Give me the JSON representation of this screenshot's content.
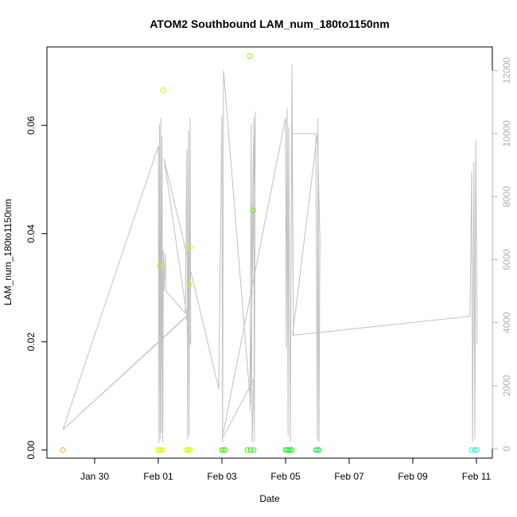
{
  "chart_data": {
    "type": "scatter",
    "title": "ATOM2 Southbound LAM_num_180to1150nm",
    "xlabel": "Date",
    "ylabel": "LAM_num_180to1150nm",
    "x_ticks": [
      "Jan 30",
      "Feb 01",
      "Feb 03",
      "Feb 05",
      "Feb 07",
      "Feb 09",
      "Feb 11"
    ],
    "x_tick_days": [
      30,
      32,
      34,
      36,
      38,
      40,
      42
    ],
    "xlim": [
      28.5,
      42.5
    ],
    "ylim": [
      -0.0015,
      0.0745
    ],
    "y_ticks": [
      0.0,
      0.02,
      0.04,
      0.06
    ],
    "y_tick_labels": [
      "0.00",
      "0.02",
      "0.04",
      "0.06"
    ],
    "y2lim": [
      -300,
      12750
    ],
    "y2_ticks": [
      0,
      2000,
      4000,
      6000,
      8000,
      10000,
      12000
    ],
    "y2_tick_labels": [
      "0",
      "2000",
      "4000",
      "6000",
      "8000",
      "10000",
      "12000"
    ],
    "grid": false,
    "series": [
      {
        "type": "points",
        "points": [
          {
            "day": 29.0,
            "value": 0.0,
            "color": "#f2a040"
          },
          {
            "day": 32.0,
            "value": 0.0,
            "color": "#e6f000"
          },
          {
            "day": 32.05,
            "value": 0.0,
            "color": "#e6f000"
          },
          {
            "day": 32.1,
            "value": 0.0,
            "color": "#e6f000"
          },
          {
            "day": 32.15,
            "value": 0.0,
            "color": "#e6f000"
          },
          {
            "day": 32.05,
            "value": 0.034,
            "color": "#d4f000"
          },
          {
            "day": 32.15,
            "value": 0.0665,
            "color": "#d4f000"
          },
          {
            "day": 32.9,
            "value": 0.0,
            "color": "#d8f000"
          },
          {
            "day": 32.95,
            "value": 0.0,
            "color": "#d8f000"
          },
          {
            "day": 33.0,
            "value": 0.0,
            "color": "#d8f000"
          },
          {
            "day": 32.98,
            "value": 0.0305,
            "color": "#d0f000"
          },
          {
            "day": 33.0,
            "value": 0.0375,
            "color": "#d0f000"
          },
          {
            "day": 34.0,
            "value": 0.0,
            "color": "#40f000"
          },
          {
            "day": 34.05,
            "value": 0.0,
            "color": "#40f000"
          },
          {
            "day": 34.1,
            "value": 0.0,
            "color": "#40f000"
          },
          {
            "day": 34.8,
            "value": 0.0,
            "color": "#30f000"
          },
          {
            "day": 34.9,
            "value": 0.0,
            "color": "#30f000"
          },
          {
            "day": 35.0,
            "value": 0.0,
            "color": "#30f000"
          },
          {
            "day": 34.88,
            "value": 0.0728,
            "color": "#80f000"
          },
          {
            "day": 34.98,
            "value": 0.0443,
            "color": "#60f000"
          },
          {
            "day": 36.0,
            "value": 0.0,
            "color": "#18f030"
          },
          {
            "day": 36.05,
            "value": 0.0,
            "color": "#18f030"
          },
          {
            "day": 36.1,
            "value": 0.0,
            "color": "#18f030"
          },
          {
            "day": 36.15,
            "value": 0.0,
            "color": "#18f030"
          },
          {
            "day": 36.2,
            "value": 0.0,
            "color": "#18f030"
          },
          {
            "day": 36.95,
            "value": 0.0,
            "color": "#10f040"
          },
          {
            "day": 37.0,
            "value": 0.0,
            "color": "#10f040"
          },
          {
            "day": 37.05,
            "value": 0.0,
            "color": "#10f040"
          },
          {
            "day": 41.85,
            "value": 0.0,
            "color": "#30f0c8"
          },
          {
            "day": 41.95,
            "value": 0.0,
            "color": "#30f0c8"
          },
          {
            "day": 42.02,
            "value": 0.0,
            "color": "#30f0c8"
          }
        ]
      },
      {
        "type": "line",
        "axis": "right",
        "color": "#c0c0c0",
        "points": [
          [
            29.0,
            600
          ],
          [
            32.0,
            9600
          ],
          [
            32.02,
            200
          ],
          [
            32.04,
            10300
          ],
          [
            32.06,
            300
          ],
          [
            32.08,
            10500
          ],
          [
            32.1,
            500
          ],
          [
            32.12,
            9900
          ],
          [
            32.14,
            200
          ],
          [
            32.16,
            6300
          ],
          [
            32.18,
            5000
          ],
          [
            32.22,
            6200
          ],
          [
            32.24,
            5000
          ],
          [
            32.85,
            4300
          ],
          [
            32.9,
            9500
          ],
          [
            32.92,
            300
          ],
          [
            32.95,
            10100
          ],
          [
            32.97,
            400
          ],
          [
            33.0,
            10500
          ],
          [
            33.02,
            3300
          ],
          [
            32.88,
            4200
          ],
          [
            29.0,
            600
          ],
          [
            32.9,
            4200
          ],
          [
            32.18,
            9200
          ],
          [
            33.9,
            1900
          ],
          [
            34.0,
            10600
          ],
          [
            34.02,
            200
          ],
          [
            34.05,
            12000
          ],
          [
            34.9,
            1400
          ],
          [
            35.0,
            10500
          ],
          [
            35.02,
            200
          ],
          [
            35.05,
            10700
          ],
          [
            34.88,
            1200
          ],
          [
            34.92,
            10300
          ],
          [
            34.95,
            200
          ],
          [
            35.0,
            2200
          ],
          [
            34.0,
            300
          ],
          [
            36.0,
            10500
          ],
          [
            36.02,
            3200
          ],
          [
            36.05,
            10800
          ],
          [
            36.08,
            400
          ],
          [
            36.1,
            10200
          ],
          [
            36.15,
            200
          ],
          [
            36.2,
            12200
          ],
          [
            36.25,
            3600
          ],
          [
            36.2,
            10000
          ],
          [
            36.95,
            10000
          ],
          [
            37.0,
            300
          ],
          [
            37.02,
            10500
          ],
          [
            37.05,
            200
          ],
          [
            37.08,
            6700
          ],
          [
            37.0,
            10000
          ],
          [
            36.22,
            3600
          ],
          [
            41.8,
            4200
          ],
          [
            41.85,
            8800
          ],
          [
            41.88,
            200
          ],
          [
            41.92,
            9100
          ],
          [
            41.95,
            300
          ],
          [
            41.98,
            9800
          ],
          [
            42.02,
            3300
          ]
        ]
      }
    ]
  }
}
